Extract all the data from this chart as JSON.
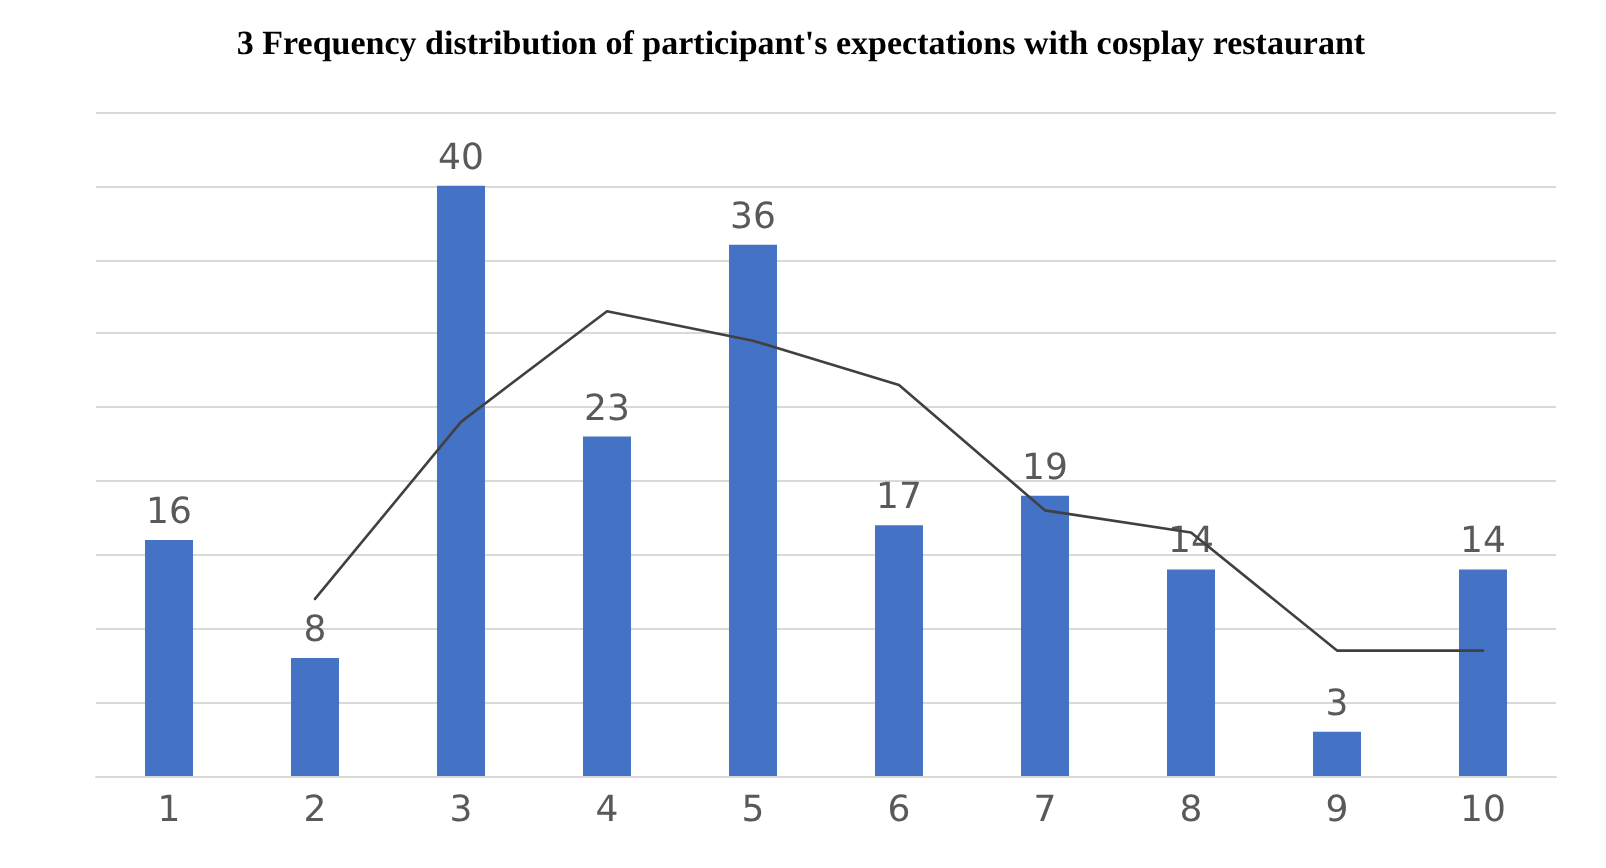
{
  "chart_data": {
    "type": "bar",
    "title": "3 Frequency distribution of participant's expectations with cosplay restaurant",
    "categories": [
      "1",
      "2",
      "3",
      "4",
      "5",
      "6",
      "7",
      "8",
      "9",
      "10"
    ],
    "series": [
      {
        "color": "#4472c4",
        "values": [
          16,
          8,
          40,
          23,
          36,
          17,
          19,
          14,
          3,
          14
        ],
        "value_labels": [
          "16",
          "8",
          "40",
          "23",
          "36",
          "17",
          "19",
          "14",
          "3",
          "14"
        ]
      },
      {
        "type": "line",
        "color": "#404040",
        "values": [
          null,
          12,
          24,
          31.5,
          29.5,
          26.5,
          18,
          16.5,
          8.5,
          8.5
        ]
      }
    ],
    "ylim": [
      0,
      45
    ],
    "yticks": [
      {
        "value": 0,
        "label": null
      },
      {
        "value": 5,
        "label": null
      },
      {
        "value": 10,
        "label": null
      },
      {
        "value": 15,
        "label": null
      },
      {
        "value": 20,
        "label": null
      },
      {
        "value": 25,
        "label": null
      },
      {
        "value": 30,
        "label": null
      },
      {
        "value": 35,
        "label": null
      },
      {
        "value": 40,
        "label": null
      },
      {
        "value": 45,
        "label": null
      }
    ],
    "tick_labels": "x",
    "grid": "y",
    "marker": "none",
    "line_style": "solid"
  }
}
